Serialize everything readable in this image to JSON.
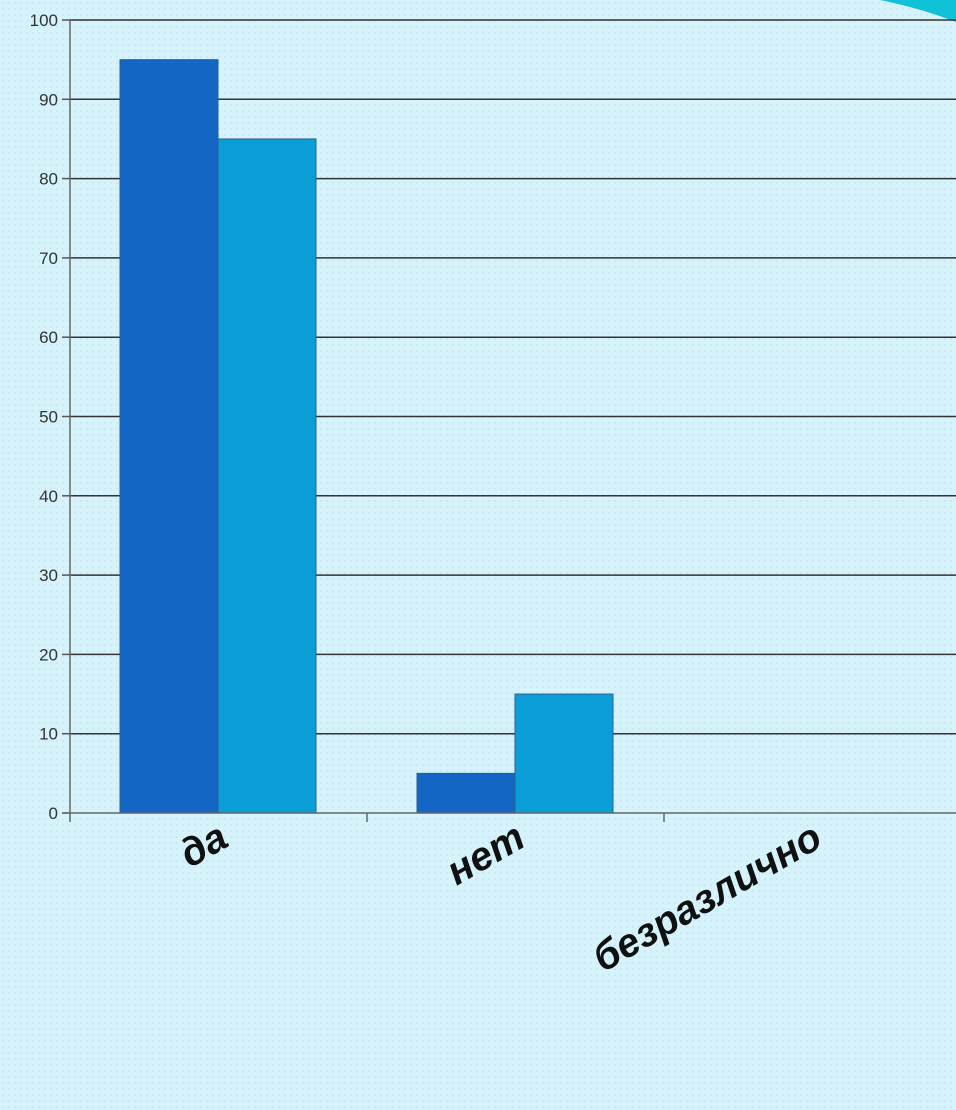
{
  "chart_data": {
    "type": "bar",
    "categories": [
      "да",
      "нет",
      "безразлично"
    ],
    "series": [
      {
        "values": [
          95,
          5,
          0
        ],
        "color": "#1366c4"
      },
      {
        "values": [
          85,
          15,
          0
        ],
        "color": "#0a9ed6"
      }
    ],
    "yticks": [
      "0",
      "10",
      "20",
      "30",
      "40",
      "50",
      "60",
      "70",
      "80",
      "90",
      "100"
    ],
    "ylim": [
      0,
      100
    ],
    "grid": true,
    "legend": "none",
    "accent_color": "#0fc2d8"
  }
}
